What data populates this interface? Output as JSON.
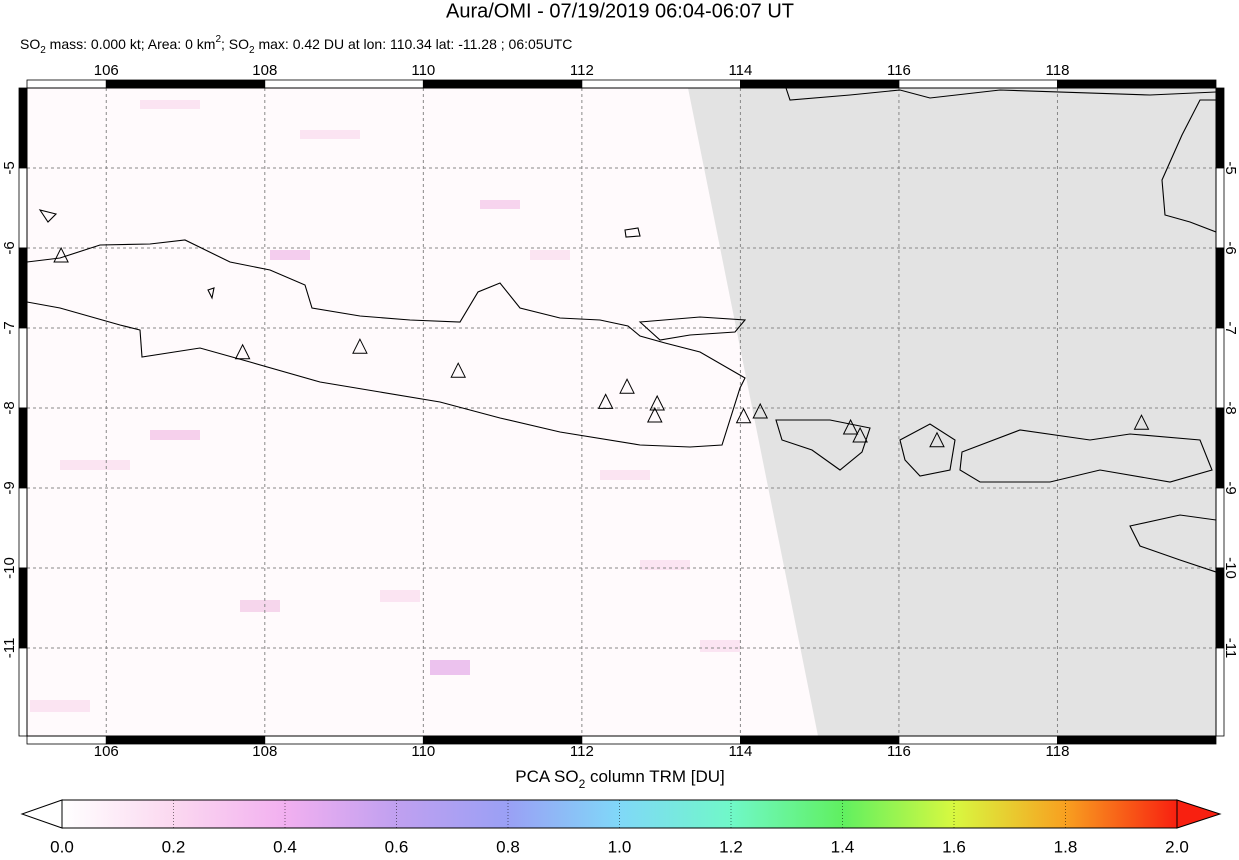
{
  "map": {
    "title": "Aura/OMI - 07/19/2019 06:04-06:07 UT",
    "subtitle": [
      "SO",
      "2",
      " mass: 0.000 kt; Area: 0 km",
      "2",
      "; SO",
      "2",
      " max: 0.42 DU at lon: 110.34 lat: -11.28 ; 06:05UTC"
    ],
    "xlim": [
      105,
      120
    ],
    "ylim": [
      -12.1,
      -4
    ],
    "xticks": [
      106,
      108,
      110,
      112,
      114,
      116,
      118
    ],
    "yticks": [
      -5,
      -6,
      -7,
      -8,
      -9,
      -10,
      -11
    ],
    "volcanoes": [
      [
        105.43,
        -6.1
      ],
      [
        107.72,
        -7.31
      ],
      [
        109.2,
        -7.24
      ],
      [
        110.44,
        -7.54
      ],
      [
        112.3,
        -7.93
      ],
      [
        112.57,
        -7.74
      ],
      [
        112.95,
        -7.95
      ],
      [
        112.92,
        -8.1
      ],
      [
        114.04,
        -8.11
      ],
      [
        114.25,
        -8.05
      ],
      [
        115.39,
        -8.25
      ],
      [
        115.51,
        -8.35
      ],
      [
        116.48,
        -8.41
      ],
      [
        119.06,
        -8.19
      ]
    ],
    "colorbar": {
      "label": [
        "PCA SO",
        "2",
        " column TRM [DU]"
      ],
      "lim": [
        0,
        2
      ],
      "ticks": [
        {
          "value": 0,
          "label": "0.0"
        },
        {
          "value": 0.2,
          "label": "0.2"
        },
        {
          "value": 0.4,
          "label": "0.4"
        },
        {
          "value": 0.6,
          "label": "0.6"
        },
        {
          "value": 0.8,
          "label": "0.8"
        },
        {
          "value": 1,
          "label": "1.0"
        },
        {
          "value": 1.2,
          "label": "1.2"
        },
        {
          "value": 1.4,
          "label": "1.4"
        },
        {
          "value": 1.6,
          "label": "1.6"
        },
        {
          "value": 1.8,
          "label": "1.8"
        },
        {
          "value": 2,
          "label": "2.0"
        }
      ]
    }
  }
}
